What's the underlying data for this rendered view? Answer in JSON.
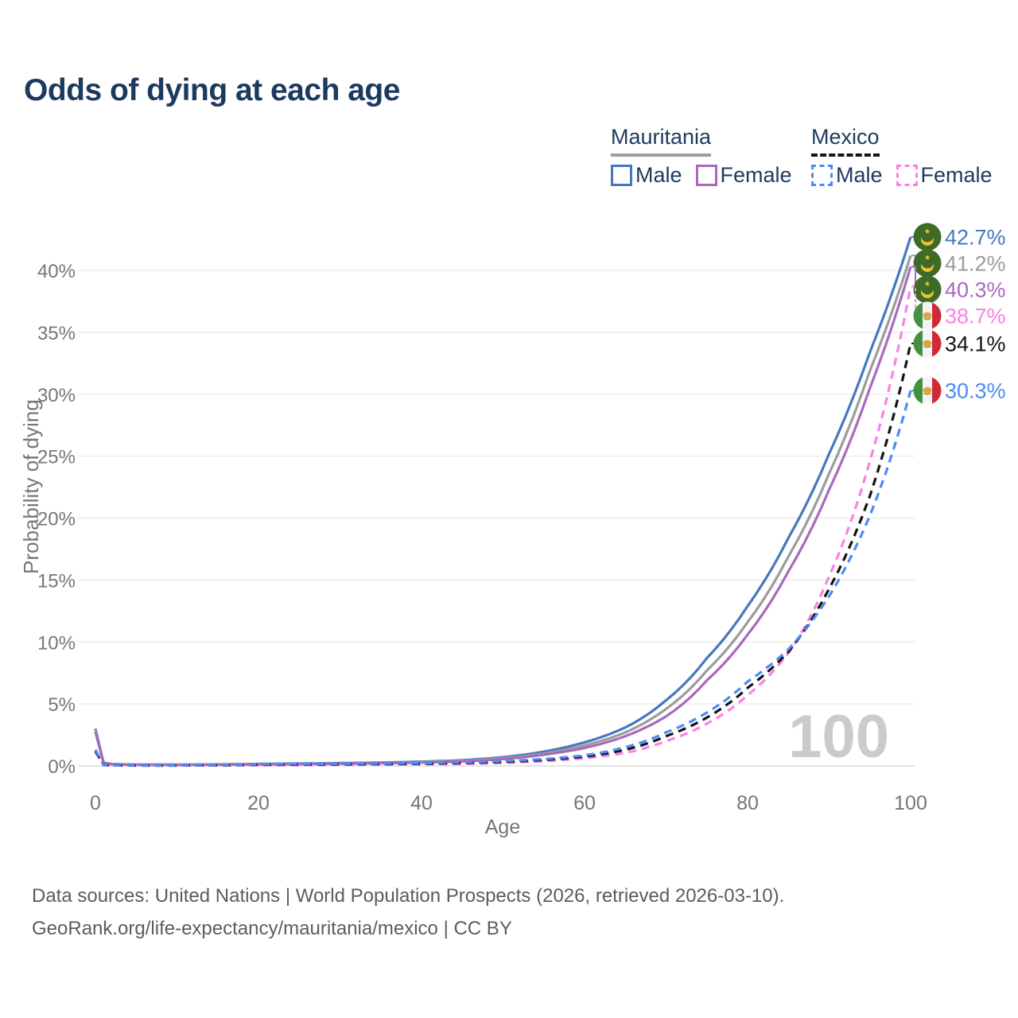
{
  "title": "Odds of dying at each age",
  "watermark": "100",
  "legend": {
    "groups": [
      {
        "name": "Mauritania",
        "line_style": "solid",
        "underline_color": "#9e9e9e",
        "items": [
          {
            "label": "Male",
            "color": "#4678bf"
          },
          {
            "label": "Female",
            "color": "#a969bd"
          }
        ]
      },
      {
        "name": "Mexico",
        "line_style": "dashed",
        "underline_color": "#141414",
        "items": [
          {
            "label": "Male",
            "color": "#4b8bf5"
          },
          {
            "label": "Female",
            "color": "#fb80e8"
          }
        ]
      }
    ]
  },
  "chart_data": {
    "type": "line",
    "title": "Odds of dying at each age",
    "xlabel": "Age",
    "ylabel": "Probability of dying",
    "xlim": [
      0,
      100
    ],
    "ylim": [
      0,
      44
    ],
    "xticks": [
      0,
      20,
      40,
      60,
      80,
      100
    ],
    "yticks": [
      0,
      5,
      10,
      15,
      20,
      25,
      30,
      35,
      40
    ],
    "ytick_suffix": "%",
    "grid": true,
    "legend_position": "top-right",
    "x": [
      0,
      1,
      2,
      5,
      10,
      15,
      20,
      25,
      30,
      35,
      40,
      45,
      50,
      55,
      60,
      65,
      70,
      75,
      80,
      85,
      90,
      95,
      100
    ],
    "series": [
      {
        "name": "Mauritania Male",
        "country": "Mauritania",
        "sex": "Male",
        "color": "#4678bf",
        "dash": false,
        "y": [
          3.0,
          0.25,
          0.15,
          0.1,
          0.1,
          0.12,
          0.16,
          0.19,
          0.23,
          0.27,
          0.34,
          0.46,
          0.7,
          1.15,
          1.9,
          3.1,
          5.3,
          8.7,
          12.9,
          18.4,
          25.2,
          33.4,
          42.7
        ]
      },
      {
        "name": "Mauritania Overall",
        "country": "Mauritania",
        "sex": "Both",
        "color": "#9c9c9c",
        "dash": false,
        "y": [
          2.9,
          0.23,
          0.14,
          0.09,
          0.09,
          0.11,
          0.14,
          0.17,
          0.2,
          0.24,
          0.3,
          0.41,
          0.62,
          1.0,
          1.65,
          2.7,
          4.6,
          7.7,
          11.6,
          16.9,
          23.6,
          31.9,
          41.2
        ]
      },
      {
        "name": "Mauritania Female",
        "country": "Mauritania",
        "sex": "Female",
        "color": "#a969bd",
        "dash": false,
        "y": [
          2.75,
          0.21,
          0.13,
          0.09,
          0.08,
          0.09,
          0.12,
          0.14,
          0.17,
          0.21,
          0.27,
          0.36,
          0.55,
          0.9,
          1.45,
          2.4,
          4.0,
          6.9,
          10.6,
          15.7,
          22.3,
          30.5,
          40.3
        ]
      },
      {
        "name": "Mexico Female",
        "country": "Mexico",
        "sex": "Female",
        "color": "#fb80e8",
        "dash": true,
        "y": [
          1.1,
          0.06,
          0.04,
          0.03,
          0.03,
          0.04,
          0.05,
          0.06,
          0.08,
          0.1,
          0.13,
          0.17,
          0.25,
          0.38,
          0.62,
          1.05,
          2.0,
          3.4,
          5.7,
          9.1,
          15.3,
          24.6,
          38.7
        ]
      },
      {
        "name": "Mexico Overall",
        "country": "Mexico",
        "sex": "Both",
        "color": "#141414",
        "dash": true,
        "y": [
          1.2,
          0.07,
          0.045,
          0.035,
          0.035,
          0.055,
          0.09,
          0.11,
          0.13,
          0.15,
          0.18,
          0.23,
          0.32,
          0.48,
          0.75,
          1.3,
          2.4,
          3.9,
          6.3,
          9.2,
          14.3,
          21.8,
          34.1
        ]
      },
      {
        "name": "Mexico Male",
        "country": "Mexico",
        "sex": "Male",
        "color": "#4b8bf5",
        "dash": true,
        "y": [
          1.3,
          0.08,
          0.05,
          0.04,
          0.04,
          0.07,
          0.12,
          0.15,
          0.17,
          0.19,
          0.22,
          0.28,
          0.38,
          0.55,
          0.85,
          1.5,
          2.7,
          4.3,
          6.8,
          9.4,
          13.7,
          20.2,
          30.3
        ]
      }
    ],
    "annotations": [
      {
        "series": "Mauritania Male",
        "value_label": "42.7%",
        "value": 42.7,
        "flag": "mauritania",
        "color": "#4678bf"
      },
      {
        "series": "Mauritania Overall",
        "value_label": "41.2%",
        "value": 41.2,
        "flag": "mauritania",
        "color": "#9c9c9c"
      },
      {
        "series": "Mauritania Female",
        "value_label": "40.3%",
        "value": 40.3,
        "flag": "mauritania",
        "color": "#a969bd"
      },
      {
        "series": "Mexico Female",
        "value_label": "38.7%",
        "value": 38.7,
        "flag": "mexico",
        "color": "#fb80e8"
      },
      {
        "series": "Mexico Overall",
        "value_label": "34.1%",
        "value": 34.1,
        "flag": "mexico",
        "color": "#141414"
      },
      {
        "series": "Mexico Male",
        "value_label": "30.3%",
        "value": 30.3,
        "flag": "mexico",
        "color": "#4b8bf5"
      }
    ]
  },
  "colors": {
    "title": "#1b3a5e",
    "axis_text": "#767676",
    "gridline": "#ededed",
    "baseline": "#dcdcdc",
    "watermark": "#cbcbcb",
    "footer_text": "#5c5c5c"
  },
  "footer": {
    "line1": "Data sources: United Nations | World Population Prospects (2026, retrieved 2026-03-10).",
    "line2": "GeoRank.org/life-expectancy/mauritania/mexico | CC BY"
  }
}
